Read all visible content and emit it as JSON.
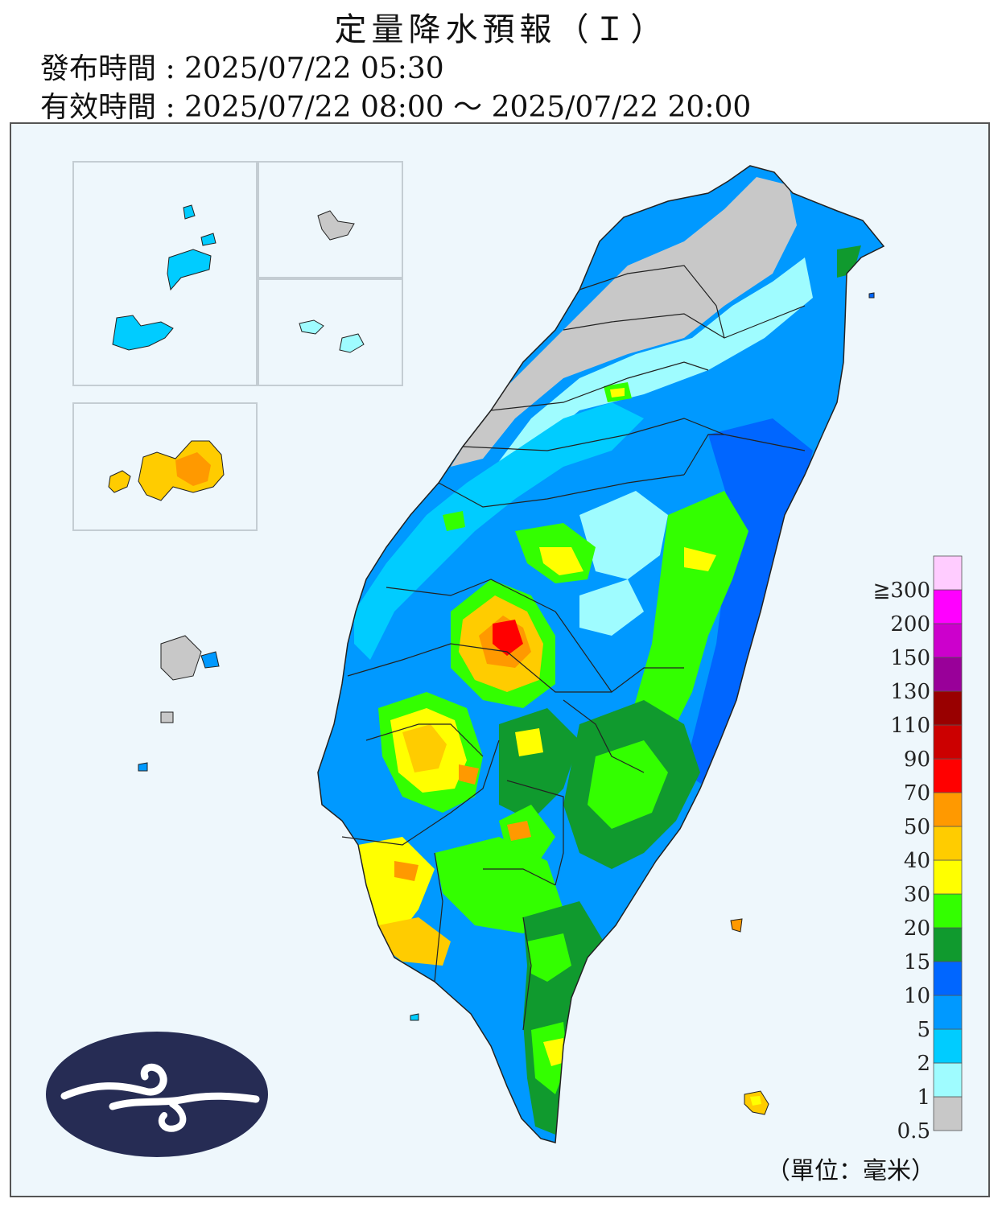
{
  "header": {
    "title": "定量降水預報（Ｉ）",
    "issued": "發布時間 : 2025/07/22 05:30",
    "valid": "有效時間 : 2025/07/22 08:00 ～ 2025/07/22 20:00"
  },
  "legend": {
    "unit": "（單位：毫米）",
    "levels": [
      {
        "label": "0.5",
        "color": "#c8c8c8"
      },
      {
        "label": "1",
        "color": "#9ffcff"
      },
      {
        "label": "2",
        "color": "#00ccff"
      },
      {
        "label": "5",
        "color": "#0099ff"
      },
      {
        "label": "10",
        "color": "#0066ff"
      },
      {
        "label": "15",
        "color": "#109a2e"
      },
      {
        "label": "20",
        "color": "#33ff00"
      },
      {
        "label": "30",
        "color": "#ffff00"
      },
      {
        "label": "40",
        "color": "#ffcc00"
      },
      {
        "label": "50",
        "color": "#ff9900"
      },
      {
        "label": "70",
        "color": "#ff0000"
      },
      {
        "label": "90",
        "color": "#cc0000"
      },
      {
        "label": "110",
        "color": "#990000"
      },
      {
        "label": "130",
        "color": "#990099"
      },
      {
        "label": "150",
        "color": "#cc00cc"
      },
      {
        "label": "200",
        "color": "#ff00ff"
      },
      {
        "label": "≧300",
        "color": "#ffccff"
      }
    ]
  },
  "map": {
    "logo": "cwa-logo",
    "background_color": "#eef7fc"
  }
}
